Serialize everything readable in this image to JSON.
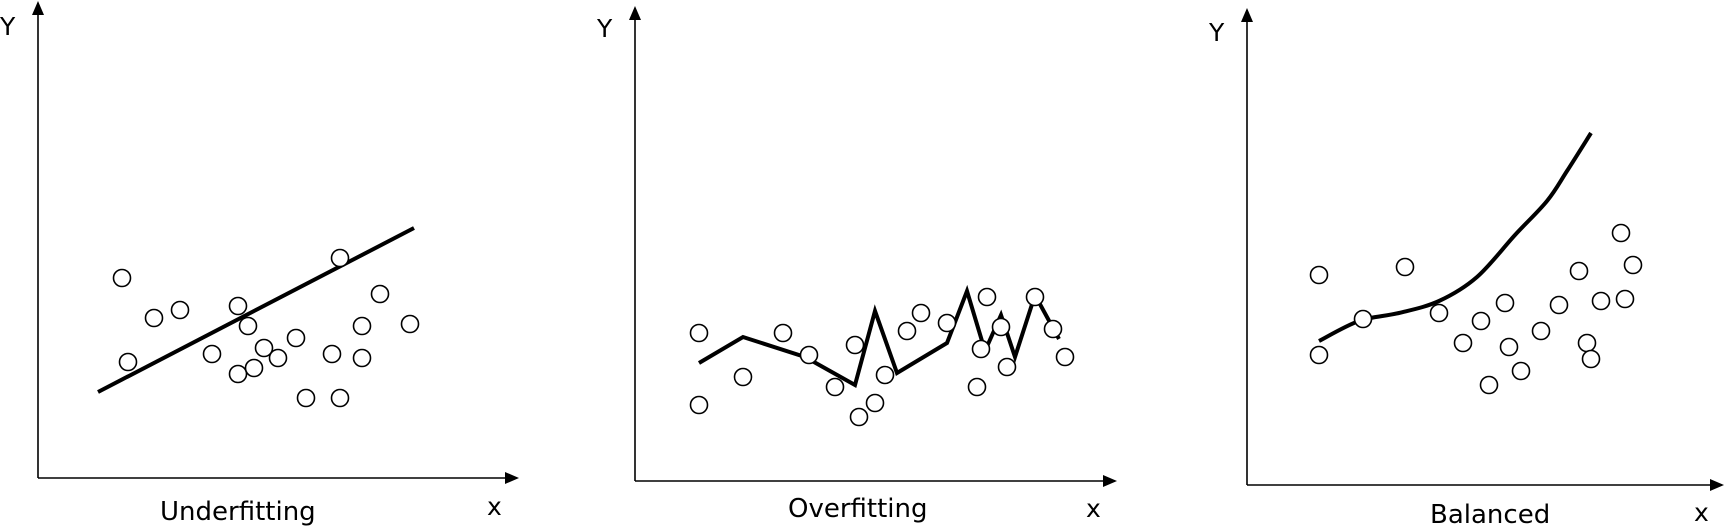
{
  "panels": [
    {
      "caption": "Underfitting",
      "y_axis_label": "Y",
      "x_axis_label": "x",
      "fit_type": "straight line",
      "points": [
        [
          42,
          100
        ],
        [
          45,
          58
        ],
        [
          58,
          80
        ],
        [
          71,
          84
        ],
        [
          87,
          62
        ],
        [
          100,
          52
        ],
        [
          100,
          86
        ],
        [
          108,
          55
        ],
        [
          105,
          76
        ],
        [
          113,
          65
        ],
        [
          120,
          60
        ],
        [
          129,
          70
        ],
        [
          134,
          40
        ],
        [
          147,
          62
        ],
        [
          151,
          40
        ],
        [
          151,
          110
        ],
        [
          162,
          60
        ],
        [
          162,
          76
        ],
        [
          171,
          92
        ],
        [
          186,
          77
        ]
      ],
      "fit": [
        [
          30,
          43
        ],
        [
          188,
          125
        ]
      ]
    },
    {
      "caption": "Overfitting",
      "y_axis_label": "Y",
      "x_axis_label": "x",
      "fit_type": "zigzag interpolation",
      "points": [
        [
          32,
          38
        ],
        [
          32,
          74
        ],
        [
          54,
          52
        ],
        [
          74,
          74
        ],
        [
          87,
          63
        ],
        [
          100,
          47
        ],
        [
          110,
          68
        ],
        [
          112,
          32
        ],
        [
          120,
          39
        ],
        [
          125,
          53
        ],
        [
          136,
          75
        ],
        [
          143,
          84
        ],
        [
          156,
          79
        ],
        [
          171,
          47
        ],
        [
          173,
          66
        ],
        [
          176,
          92
        ],
        [
          183,
          77
        ],
        [
          186,
          57
        ],
        [
          200,
          92
        ],
        [
          209,
          76
        ],
        [
          215,
          62
        ]
      ],
      "fit": [
        [
          32,
          59
        ],
        [
          54,
          72
        ],
        [
          85,
          62
        ],
        [
          110,
          48
        ],
        [
          120,
          85
        ],
        [
          131,
          54
        ],
        [
          156,
          69
        ],
        [
          166,
          95
        ],
        [
          175,
          65
        ],
        [
          183,
          83
        ],
        [
          190,
          62
        ],
        [
          200,
          93
        ],
        [
          212,
          71
        ]
      ]
    },
    {
      "caption": "Balanced",
      "y_axis_label": "Y",
      "x_axis_label": "x",
      "fit_type": "smooth curve",
      "points": [
        [
          36,
          65
        ],
        [
          36,
          105
        ],
        [
          58,
          83
        ],
        [
          79,
          109
        ],
        [
          96,
          86
        ],
        [
          108,
          71
        ],
        [
          117,
          82
        ],
        [
          121,
          50
        ],
        [
          129,
          91
        ],
        [
          131,
          69
        ],
        [
          137,
          57
        ],
        [
          147,
          77
        ],
        [
          156,
          90
        ],
        [
          166,
          107
        ],
        [
          170,
          71
        ],
        [
          172,
          63
        ],
        [
          177,
          92
        ],
        [
          187,
          126
        ],
        [
          189,
          93
        ],
        [
          193,
          110
        ]
      ],
      "fit": [
        [
          36,
          72
        ],
        [
          56,
          82
        ],
        [
          76,
          86
        ],
        [
          96,
          92
        ],
        [
          115,
          104
        ],
        [
          134,
          125
        ],
        [
          150,
          142
        ],
        [
          160,
          157
        ],
        [
          172,
          176
        ]
      ]
    }
  ],
  "style": {
    "line_color": "#000000",
    "marker": "hollow circle",
    "background": "#ffffff"
  }
}
